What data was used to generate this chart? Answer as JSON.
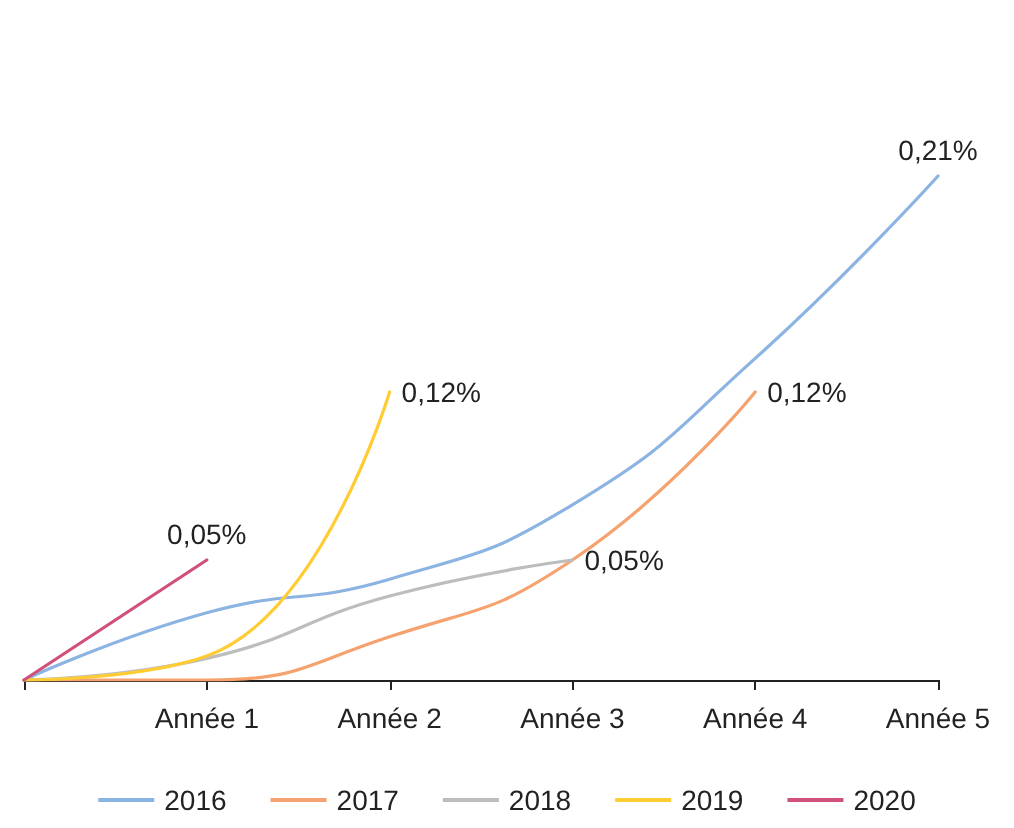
{
  "chart_data": {
    "type": "line",
    "categories": [
      null,
      "Année 1",
      "Année 2",
      "Année 3",
      "Année 4",
      "Année 5"
    ],
    "series": [
      {
        "name": "2016",
        "color": "#8cb4e2",
        "values": [
          0,
          0.028,
          0.042,
          0.073,
          0.134,
          0.21
        ],
        "value_labels": [
          null,
          null,
          null,
          null,
          null,
          "0,21%"
        ]
      },
      {
        "name": "2017",
        "color": "#f5a26e",
        "values": [
          0,
          0,
          0.018,
          0.05,
          0.12,
          null
        ],
        "value_labels": [
          null,
          null,
          null,
          null,
          "0,12%",
          null
        ]
      },
      {
        "name": "2018",
        "color": "#bdbdbd",
        "values": [
          0,
          0.009,
          0.035,
          0.05,
          null,
          null
        ],
        "value_labels": [
          null,
          null,
          null,
          "0,05%",
          null,
          null
        ]
      },
      {
        "name": "2019",
        "color": "#ffcc33",
        "values": [
          0,
          0.01,
          0.12,
          null,
          null,
          null
        ],
        "value_labels": [
          null,
          null,
          "0,12%",
          null,
          null,
          null
        ]
      },
      {
        "name": "2020",
        "color": "#d0507a",
        "values": [
          0,
          0.05,
          null,
          null,
          null,
          null
        ],
        "value_labels": [
          null,
          "0,05%",
          null,
          null,
          null,
          null
        ]
      }
    ],
    "legend": "bottom",
    "grid": false,
    "marker": "none",
    "line_style": "solid"
  }
}
